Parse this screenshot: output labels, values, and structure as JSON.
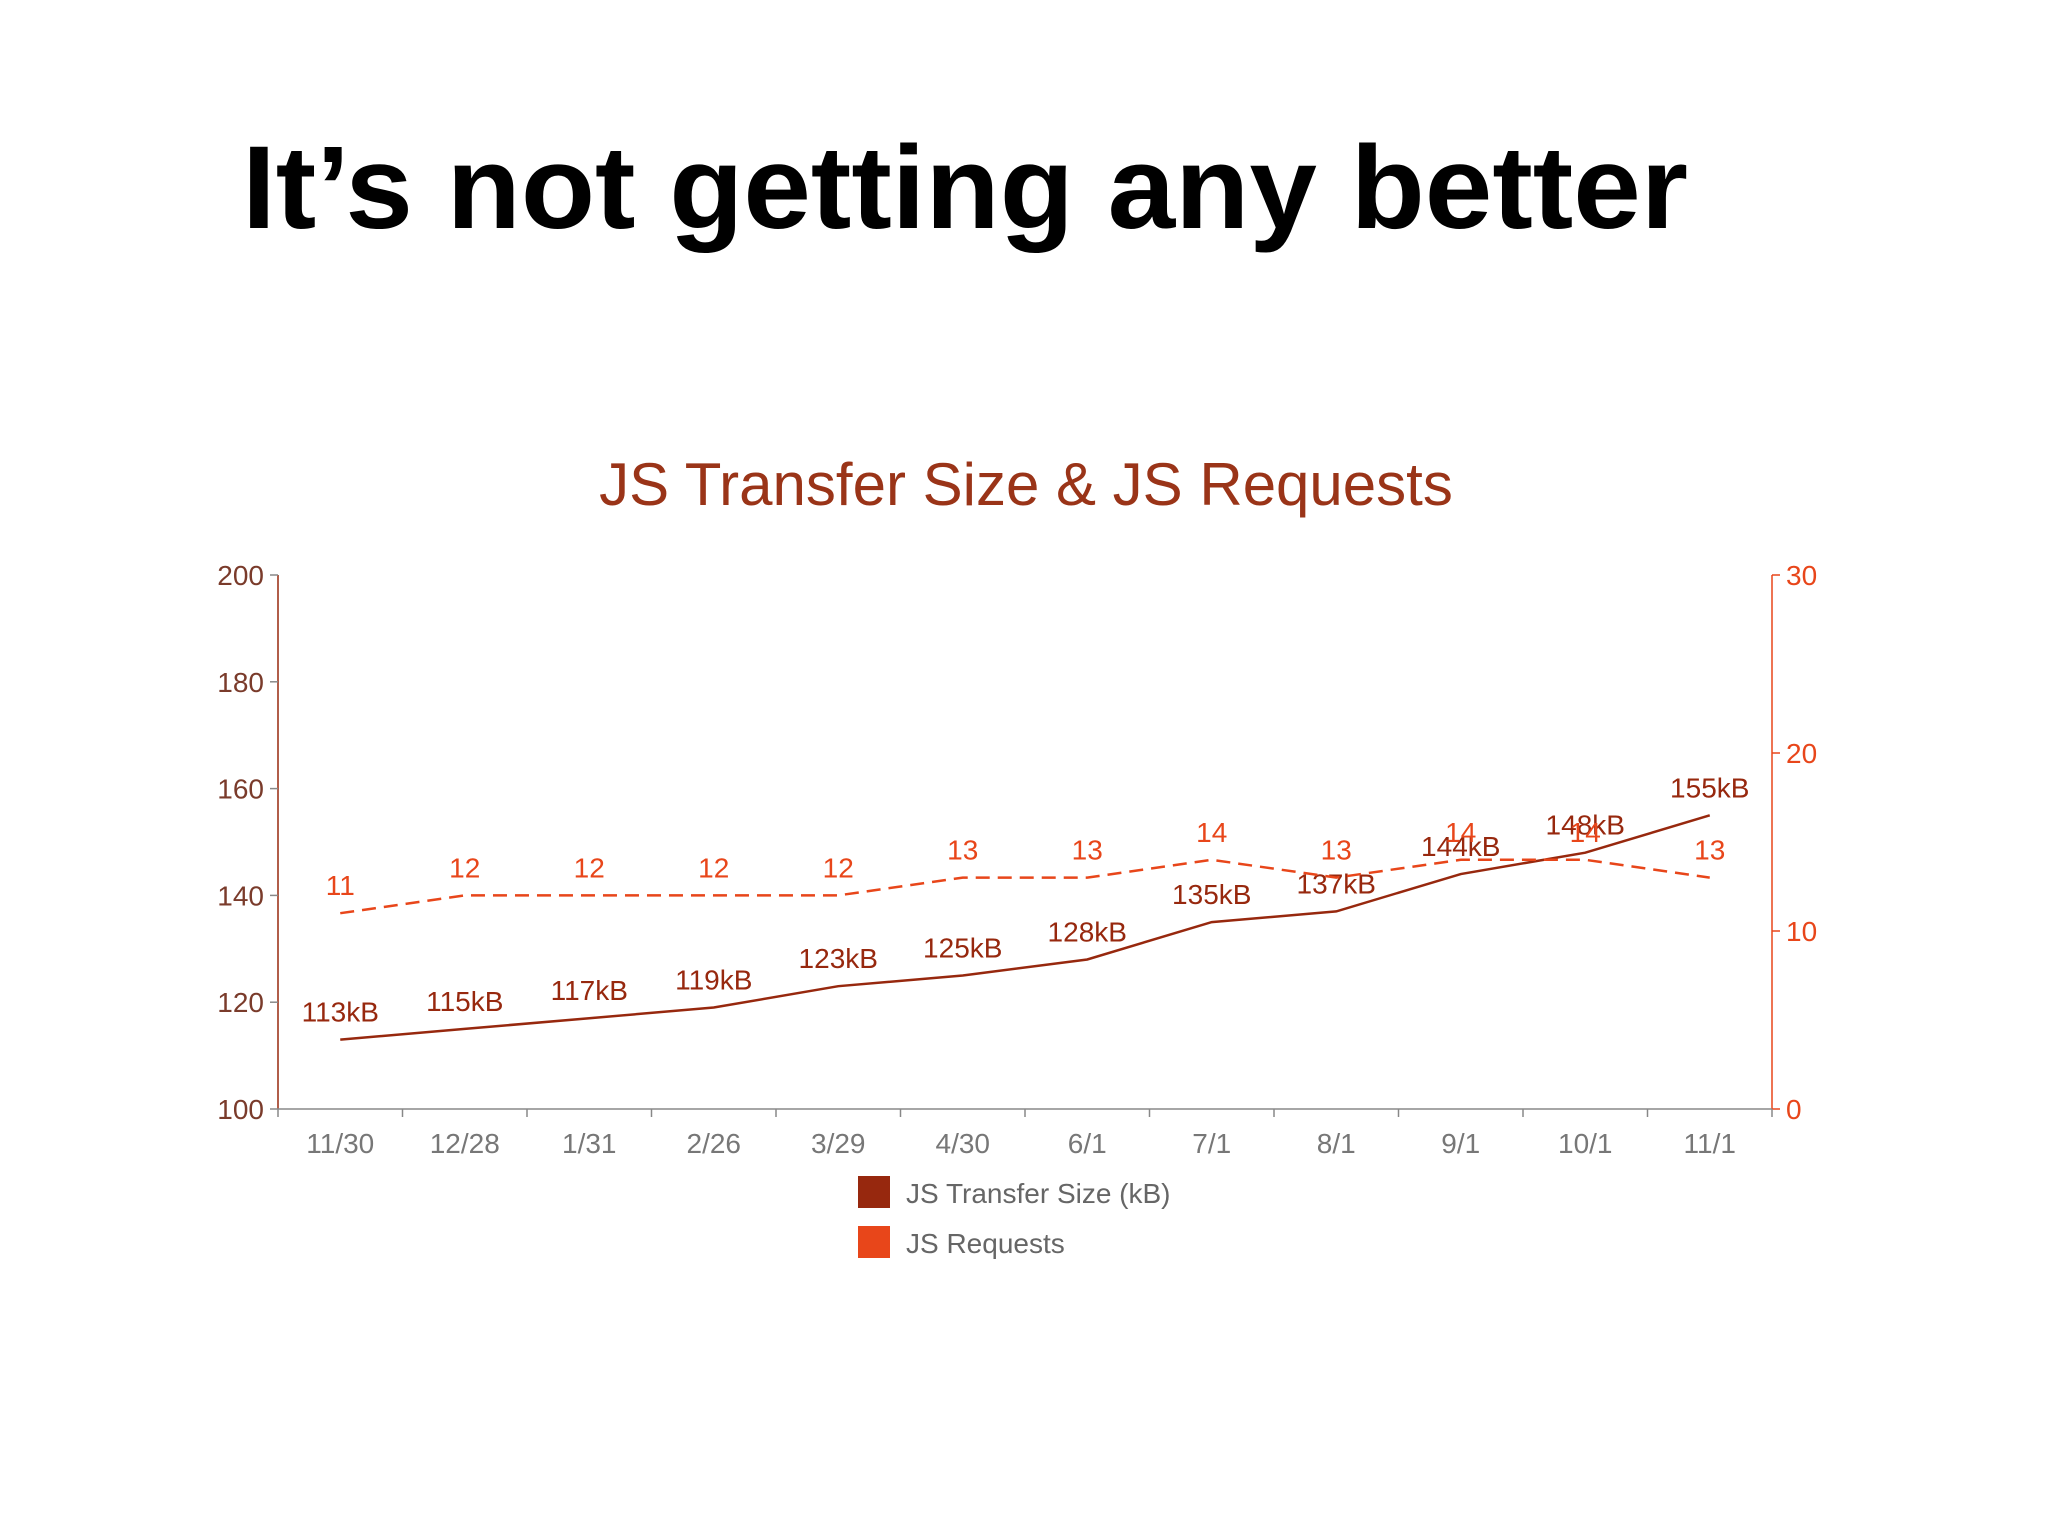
{
  "header": {
    "title": "It’s not getting any better"
  },
  "chart_data": {
    "type": "line",
    "title": "JS Transfer Size & JS Requests",
    "categories": [
      "11/30",
      "12/28",
      "1/31",
      "2/26",
      "3/29",
      "4/30",
      "6/1",
      "7/1",
      "8/1",
      "9/1",
      "10/1",
      "11/1"
    ],
    "series": [
      {
        "name": "JS Transfer Size (kB)",
        "color": "#97280e",
        "dashed": false,
        "values": [
          113,
          115,
          117,
          119,
          123,
          125,
          128,
          135,
          137,
          144,
          148,
          155
        ],
        "value_labels": [
          "113kB",
          "115kB",
          "117kB",
          "119kB",
          "123kB",
          "125kB",
          "128kB",
          "135kB",
          "137kB",
          "144kB",
          "148kB",
          "155kB"
        ]
      },
      {
        "name": "JS Requests",
        "color": "#e8461a",
        "dashed": true,
        "axis": "y2",
        "values": [
          11,
          12,
          12,
          12,
          12,
          13,
          13,
          14,
          13,
          14,
          14,
          13
        ]
      }
    ],
    "ylim": [
      100,
      200
    ],
    "yticks": [
      100,
      120,
      140,
      160,
      180,
      200
    ],
    "y2lim": [
      0,
      30
    ],
    "y2ticks": [
      0,
      10,
      20,
      30
    ]
  }
}
